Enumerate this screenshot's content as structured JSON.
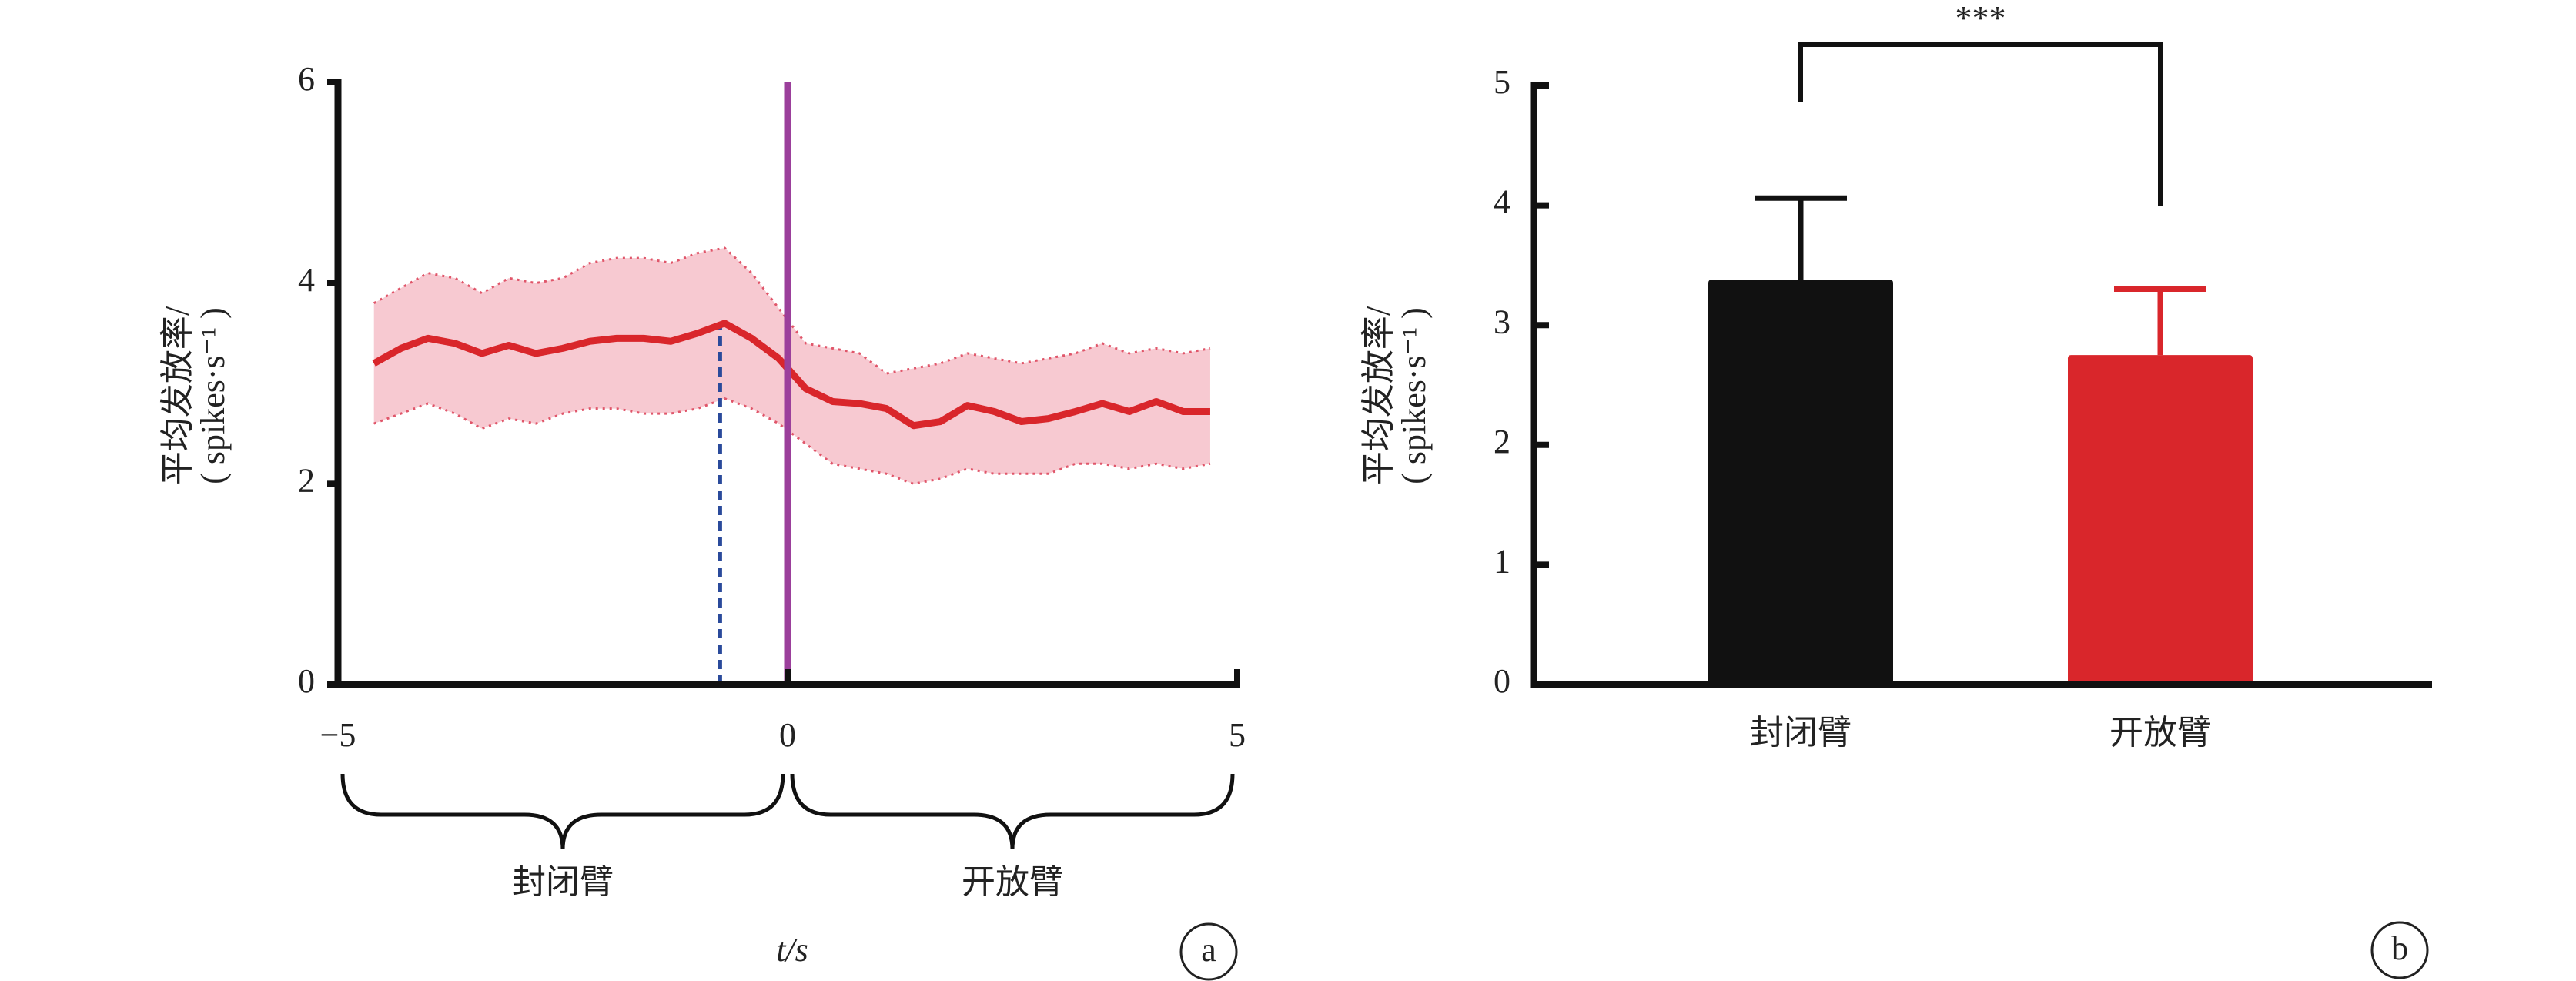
{
  "chart_data": [
    {
      "type": "line",
      "panel": "a",
      "ylabel": [
        "平均发放率/",
        "( spikes·s⁻¹ )"
      ],
      "xlabel": "t/s",
      "xlim": [
        -5,
        5
      ],
      "xticks": [
        {
          "value": -5,
          "label": "−5"
        },
        0,
        5
      ],
      "ylim": [
        0,
        6
      ],
      "yticks": [
        0,
        2,
        4,
        6
      ],
      "x": [
        -4.6,
        -4.3,
        -4.0,
        -3.7,
        -3.4,
        -3.1,
        -2.8,
        -2.5,
        -2.2,
        -1.9,
        -1.6,
        -1.3,
        -1.0,
        -0.7,
        -0.4,
        -0.1,
        0.2,
        0.5,
        0.8,
        1.1,
        1.4,
        1.7,
        2.0,
        2.3,
        2.6,
        2.9,
        3.2,
        3.5,
        3.8,
        4.1,
        4.4,
        4.7
      ],
      "series": [
        {
          "color": "#d9262b",
          "values": [
            3.2,
            3.35,
            3.45,
            3.4,
            3.3,
            3.38,
            3.3,
            3.35,
            3.42,
            3.45,
            3.45,
            3.42,
            3.5,
            3.6,
            3.45,
            3.25,
            2.95,
            2.82,
            2.8,
            2.75,
            2.58,
            2.62,
            2.78,
            2.72,
            2.62,
            2.65,
            2.72,
            2.8,
            2.72,
            2.82,
            2.72,
            2.72
          ]
        }
      ],
      "band": {
        "color": "#f7c9d1",
        "edge_color": "#e0566a",
        "upper": [
          3.8,
          3.95,
          4.1,
          4.05,
          3.9,
          4.05,
          4.0,
          4.05,
          4.2,
          4.25,
          4.25,
          4.2,
          4.3,
          4.35,
          4.1,
          3.75,
          3.4,
          3.35,
          3.3,
          3.1,
          3.15,
          3.2,
          3.3,
          3.25,
          3.2,
          3.25,
          3.3,
          3.4,
          3.3,
          3.35,
          3.3,
          3.35
        ],
        "lower": [
          2.6,
          2.7,
          2.8,
          2.7,
          2.55,
          2.65,
          2.6,
          2.7,
          2.75,
          2.75,
          2.7,
          2.7,
          2.75,
          2.85,
          2.75,
          2.6,
          2.4,
          2.2,
          2.15,
          2.1,
          2.0,
          2.05,
          2.15,
          2.1,
          2.1,
          2.1,
          2.2,
          2.2,
          2.15,
          2.2,
          2.15,
          2.2
        ]
      },
      "vlines": [
        {
          "x": 0,
          "color": "#9b3f9b"
        },
        {
          "x": -0.75,
          "y_end": 3.6,
          "color": "#2a4a9b",
          "dashed": true
        }
      ],
      "regions": [
        {
          "from": -5,
          "to": 0,
          "label": "封闭臂"
        },
        {
          "from": 0,
          "to": 5,
          "label": "开放臂"
        }
      ]
    },
    {
      "type": "bar",
      "panel": "b",
      "ylabel": [
        "平均发放率/",
        "( spikes·s⁻¹ )"
      ],
      "categories": [
        "封闭臂",
        "开放臂"
      ],
      "values": [
        3.38,
        2.75
      ],
      "errors": [
        0.68,
        0.55
      ],
      "colors": [
        "#111111",
        "#d9262b"
      ],
      "ylim": [
        0,
        5
      ],
      "yticks": [
        0,
        1,
        2,
        3,
        4,
        5
      ],
      "significance": "***"
    }
  ]
}
